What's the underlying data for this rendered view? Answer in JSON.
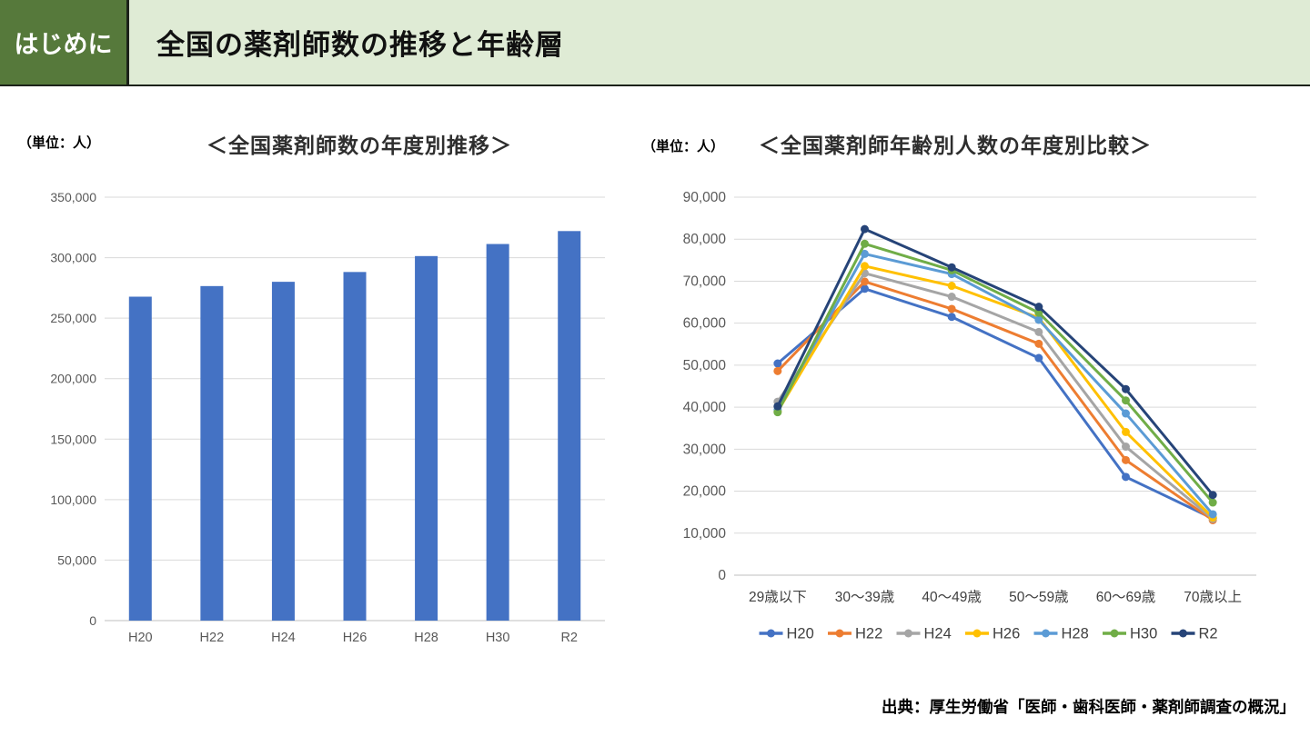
{
  "header": {
    "tab_label": "はじめに",
    "title": "全国の薬剤師数の推移と年齢層"
  },
  "source_text": "出典：厚生労働省「医師・歯科医師・薬剤師調査の概況」",
  "colors": {
    "header_tab_green": "#56793b",
    "header_banner_green": "#dfebd5",
    "gridline": "#d9d9d9",
    "axis_line": "#bfbfbf",
    "tick_label": "#595959",
    "legend_label": "#404040"
  },
  "chart_data": [
    {
      "type": "bar",
      "title": "＜全国薬剤師数の年度別推移＞",
      "unit_label": "（単位：人）",
      "categories": [
        "H20",
        "H22",
        "H24",
        "H26",
        "H28",
        "H30",
        "R2"
      ],
      "values": [
        267751,
        276517,
        280052,
        288151,
        301323,
        311289,
        321982
      ],
      "bar_color": "#4472C4",
      "xlabel": "",
      "ylabel": "",
      "ylim": [
        0,
        350000
      ],
      "ytick_step": 50000,
      "grid": true,
      "legend_position": "none"
    },
    {
      "type": "line",
      "title": "＜全国薬剤師年齢別人数の年度別比較＞",
      "unit_label": "（単位：人）",
      "categories": [
        "29歳以下",
        "30〜39歳",
        "40〜49歳",
        "50〜59歳",
        "60〜69歳",
        "70歳以上"
      ],
      "series": [
        {
          "name": "H20",
          "color": "#4472C4",
          "values": [
            50400,
            68200,
            61500,
            51700,
            23400,
            13500
          ]
        },
        {
          "name": "H22",
          "color": "#ED7D31",
          "values": [
            48600,
            69900,
            63400,
            55100,
            27400,
            13100
          ]
        },
        {
          "name": "H24",
          "color": "#A5A5A5",
          "values": [
            41300,
            71900,
            66300,
            57900,
            30600,
            13400
          ]
        },
        {
          "name": "H26",
          "color": "#FFC000",
          "values": [
            39000,
            73600,
            68900,
            61300,
            34100,
            13700
          ]
        },
        {
          "name": "H28",
          "color": "#5B9BD5",
          "values": [
            39400,
            76500,
            71700,
            60800,
            38500,
            14500
          ]
        },
        {
          "name": "H30",
          "color": "#70AD47",
          "values": [
            38800,
            78900,
            72600,
            62500,
            41600,
            17300
          ]
        },
        {
          "name": "R2",
          "color": "#264478",
          "values": [
            40200,
            82400,
            73300,
            63900,
            44300,
            19100
          ]
        }
      ],
      "xlabel": "",
      "ylabel": "",
      "ylim": [
        0,
        90000
      ],
      "ytick_step": 10000,
      "grid": true,
      "legend_position": "bottom"
    }
  ]
}
